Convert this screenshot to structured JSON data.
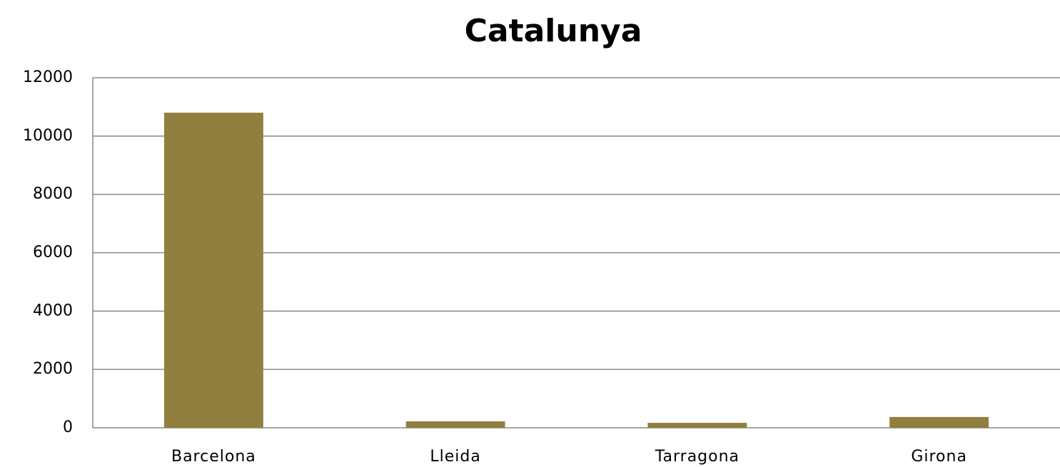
{
  "chart_data": {
    "type": "bar",
    "title": "Catalunya",
    "categories": [
      "Barcelona",
      "Lleida",
      "Tarragona",
      "Girona"
    ],
    "values": [
      10800,
      220,
      170,
      370
    ],
    "color": "#917f40",
    "ylim": [
      0,
      12000
    ],
    "yticks": [
      0,
      2000,
      4000,
      6000,
      8000,
      10000,
      12000
    ],
    "grid": true
  }
}
